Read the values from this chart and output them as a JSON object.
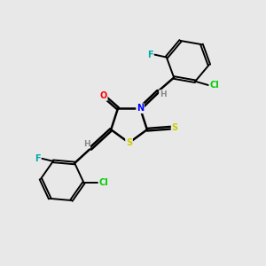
{
  "background_color": "#e8e8e8",
  "bond_color": "#000000",
  "atom_colors": {
    "S": "#cccc00",
    "N": "#0000ff",
    "O": "#ff0000",
    "F": "#00aaaa",
    "Cl": "#00cc00",
    "H": "#888888",
    "C": "#000000"
  },
  "figsize": [
    3.0,
    3.0
  ],
  "dpi": 100
}
